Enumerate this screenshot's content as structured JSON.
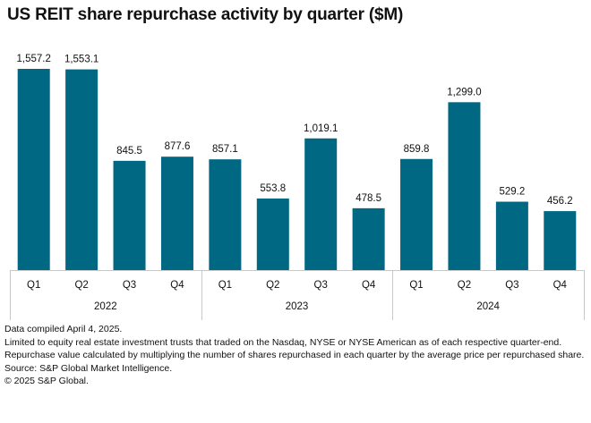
{
  "chart_data": {
    "type": "bar",
    "title": "US REIT share repurchase activity by quarter ($M)",
    "xlabel": "",
    "ylabel": "",
    "ylim": [
      0,
      1557.2
    ],
    "grid": false,
    "legend": "none",
    "bar_color": "#006882",
    "categories": [
      "Q1",
      "Q2",
      "Q3",
      "Q4",
      "Q1",
      "Q2",
      "Q3",
      "Q4",
      "Q1",
      "Q2",
      "Q3",
      "Q4"
    ],
    "groups": [
      {
        "label": "2022",
        "count": 4
      },
      {
        "label": "2023",
        "count": 4
      },
      {
        "label": "2024",
        "count": 4
      }
    ],
    "values": [
      1557.2,
      1553.1,
      845.5,
      877.6,
      857.1,
      553.8,
      1019.1,
      478.5,
      859.8,
      1299.0,
      529.2,
      456.2
    ],
    "data_labels": [
      "1,557.2",
      "1,553.1",
      "845.5",
      "877.6",
      "857.1",
      "553.8",
      "1,019.1",
      "478.5",
      "859.8",
      "1,299.0",
      "529.2",
      "456.2"
    ]
  },
  "notes": [
    "Data compiled April 4, 2025.",
    "Limited to equity real estate investment trusts that traded on the Nasdaq, NYSE or NYSE American as of each respective quarter-end.",
    "Repurchase value calculated by multiplying the number of shares repurchased in each quarter by the average price per repurchased share.",
    "Source: S&P Global Market Intelligence.",
    "© 2025 S&P Global."
  ]
}
